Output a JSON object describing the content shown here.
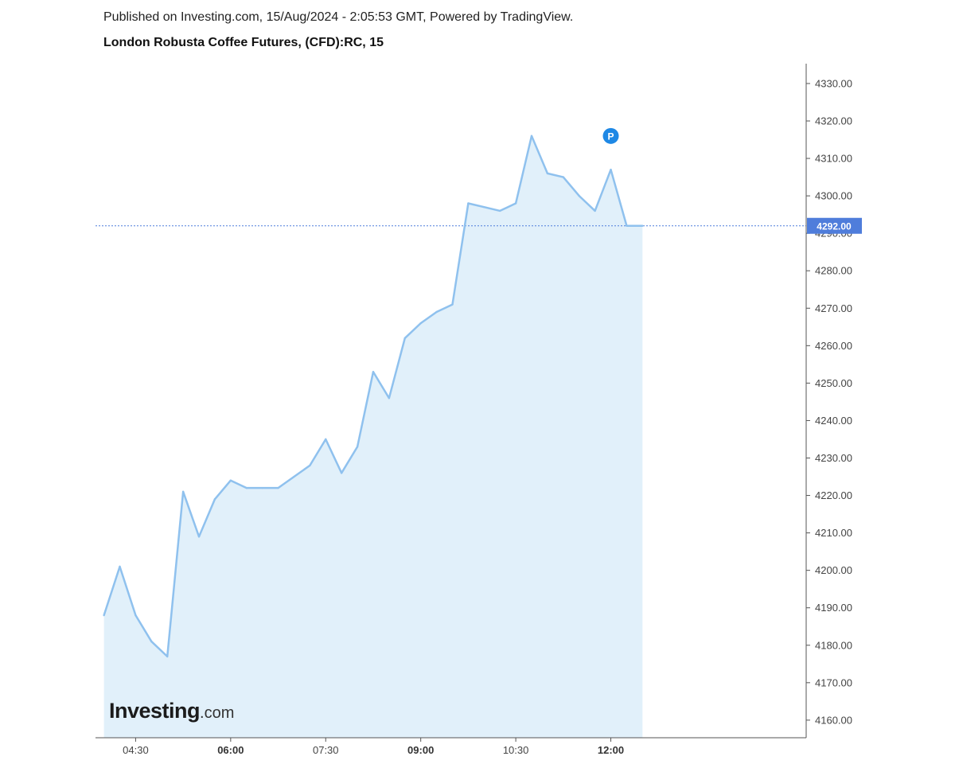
{
  "header": {
    "published": "Published on Investing.com, 15/Aug/2024 - 2:05:53 GMT, Powered by TradingView.",
    "title": "London Robusta Coffee Futures, (CFD):RC, 15"
  },
  "logo": {
    "main": "Investing",
    "suffix": ".com"
  },
  "colors": {
    "line": "#8fc1ee",
    "fill": "#e1f0fa",
    "price_tag": "#4f7ddb",
    "marker": "#1e88e5",
    "axis": "#555555",
    "dotted_line": "#4f7ddb"
  },
  "chart_data": {
    "type": "area",
    "x": [
      "04:00",
      "04:15",
      "04:30",
      "04:45",
      "05:00",
      "05:15",
      "05:30",
      "05:45",
      "06:00",
      "06:15",
      "06:30",
      "06:45",
      "07:00",
      "07:15",
      "07:30",
      "07:45",
      "08:00",
      "08:15",
      "08:30",
      "08:45",
      "09:00",
      "09:15",
      "09:30",
      "09:45",
      "10:00",
      "10:15",
      "10:30",
      "10:45",
      "11:00",
      "11:15",
      "11:30",
      "11:45",
      "12:00",
      "12:15",
      "12:30"
    ],
    "series": [
      {
        "values": [
          4188,
          4201,
          4188,
          4181,
          4177,
          4221,
          4209,
          4219,
          4224,
          4222,
          4222,
          4222,
          4225,
          4228,
          4235,
          4226,
          4233,
          4253,
          4246,
          4262,
          4266,
          4269,
          4271,
          4298,
          4297,
          4296,
          4298,
          4316,
          4306,
          4305,
          4300,
          4296,
          4307,
          4292,
          4292
        ]
      }
    ],
    "x_ticks": [
      {
        "label": "04:30",
        "major": false,
        "time": "04:30"
      },
      {
        "label": "06:00",
        "major": true,
        "time": "06:00"
      },
      {
        "label": "07:30",
        "major": false,
        "time": "07:30"
      },
      {
        "label": "09:00",
        "major": true,
        "time": "09:00"
      },
      {
        "label": "10:30",
        "major": false,
        "time": "10:30"
      },
      {
        "label": "12:00",
        "major": true,
        "time": "12:00"
      }
    ],
    "y_ticks": [
      "4160.00",
      "4170.00",
      "4180.00",
      "4190.00",
      "4200.00",
      "4210.00",
      "4220.00",
      "4230.00",
      "4240.00",
      "4250.00",
      "4260.00",
      "4270.00",
      "4280.00",
      "4290.00",
      "4300.00",
      "4310.00",
      "4320.00",
      "4330.00"
    ],
    "ylim": [
      4155.3,
      4335.3
    ],
    "xlim": [
      "03:52",
      "15:05"
    ],
    "last_price": "4292.00",
    "last_price_value": 4292,
    "marker": {
      "label": "P",
      "time": "12:00",
      "value": 4316
    },
    "grid": false,
    "xlabel": "",
    "ylabel": ""
  }
}
